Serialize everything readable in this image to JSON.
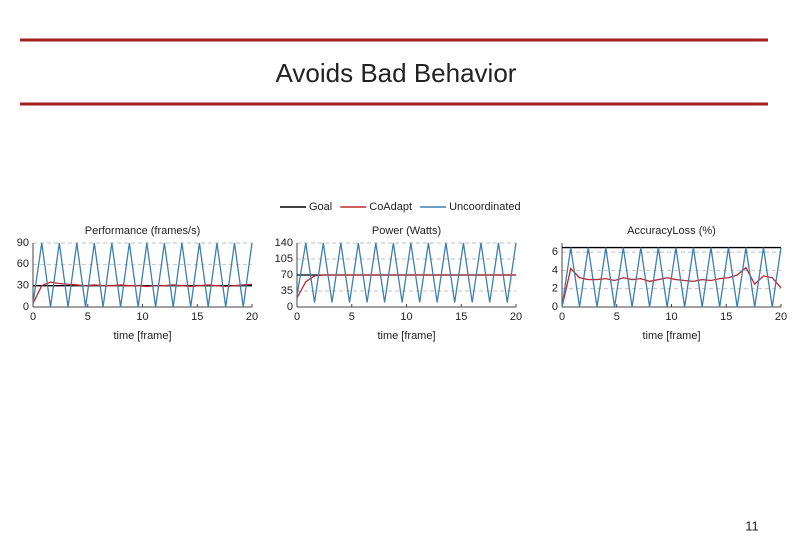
{
  "slide": {
    "title": "Avoids Bad Behavior",
    "page_number": "11"
  },
  "chart_data": [
    {
      "type": "line",
      "title": "Performance (frames/s)",
      "x_label": "time [frame]",
      "x": [
        0,
        0.8,
        1.6,
        2.4,
        3.2,
        4,
        4.8,
        5.6,
        6.4,
        7.2,
        8,
        8.8,
        9.6,
        10.4,
        11.2,
        12,
        12.8,
        13.6,
        14.4,
        15.2,
        16,
        16.8,
        17.6,
        18.4,
        19.2,
        20
      ],
      "xlim": [
        0,
        20
      ],
      "xticks": [
        0,
        5,
        10,
        15,
        20
      ],
      "ylim": [
        0,
        90
      ],
      "yticks": [
        0,
        30,
        60,
        90
      ],
      "grid": true,
      "series": [
        {
          "name": "Goal",
          "color": "#000000",
          "values": [
            30,
            30,
            30,
            30,
            30,
            30,
            30,
            30,
            30,
            30,
            30,
            30,
            30,
            30,
            30,
            30,
            30,
            30,
            30,
            30,
            30,
            30,
            30,
            30,
            30,
            30
          ]
        },
        {
          "name": "CoAdapt",
          "color": "#c0282d",
          "values": [
            5,
            30,
            35,
            33,
            32,
            31,
            30,
            31,
            30,
            30,
            31,
            30,
            30,
            29,
            30,
            30,
            31,
            30,
            29,
            30,
            31,
            30,
            29,
            30,
            31,
            32
          ]
        },
        {
          "name": "Uncoordinated",
          "color": "#3d7fb3",
          "values": [
            5,
            90,
            0,
            90,
            0,
            90,
            0,
            90,
            0,
            90,
            0,
            90,
            0,
            90,
            0,
            90,
            0,
            90,
            0,
            90,
            0,
            90,
            0,
            90,
            0,
            90
          ]
        }
      ]
    },
    {
      "type": "line",
      "title": "Power (Watts)",
      "x_label": "time [frame]",
      "x": [
        0,
        0.8,
        1.6,
        2.4,
        3.2,
        4,
        4.8,
        5.6,
        6.4,
        7.2,
        8,
        8.8,
        9.6,
        10.4,
        11.2,
        12,
        12.8,
        13.6,
        14.4,
        15.2,
        16,
        16.8,
        17.6,
        18.4,
        19.2,
        20
      ],
      "xlim": [
        0,
        20
      ],
      "xticks": [
        0,
        5,
        10,
        15,
        20
      ],
      "ylim": [
        0,
        140
      ],
      "yticks": [
        0,
        35,
        70,
        105,
        140
      ],
      "grid": true,
      "series": [
        {
          "color": "#000000",
          "values": [
            70,
            70,
            70,
            70,
            70,
            70,
            70,
            70,
            70,
            70,
            70,
            70,
            70,
            70,
            70,
            70,
            70,
            70,
            70,
            70,
            70,
            70,
            70,
            70,
            70,
            70
          ]
        },
        {
          "color": "#c0282d",
          "values": [
            20,
            55,
            68,
            70,
            70,
            70,
            70,
            70,
            70,
            70,
            70,
            70,
            70,
            70,
            70,
            70,
            70,
            70,
            70,
            70,
            70,
            70,
            70,
            70,
            70,
            70
          ]
        },
        {
          "color": "#3d7fb3",
          "values": [
            25,
            140,
            10,
            140,
            10,
            140,
            10,
            140,
            10,
            140,
            10,
            140,
            10,
            140,
            10,
            140,
            10,
            140,
            10,
            140,
            10,
            140,
            10,
            140,
            10,
            140
          ]
        }
      ]
    },
    {
      "type": "line",
      "title": "AccuracyLoss (%)",
      "x_label": "time [frame]",
      "x": [
        0,
        0.8,
        1.6,
        2.4,
        3.2,
        4,
        4.8,
        5.6,
        6.4,
        7.2,
        8,
        8.8,
        9.6,
        10.4,
        11.2,
        12,
        12.8,
        13.6,
        14.4,
        15.2,
        16,
        16.8,
        17.6,
        18.4,
        19.2,
        20
      ],
      "xlim": [
        0,
        20
      ],
      "xticks": [
        0,
        5,
        10,
        15,
        20
      ],
      "ylim": [
        0,
        7
      ],
      "yticks": [
        0,
        2,
        4,
        6
      ],
      "grid": true,
      "series": [
        {
          "color": "#000000",
          "values": [
            6.5,
            6.5,
            6.5,
            6.5,
            6.5,
            6.5,
            6.5,
            6.5,
            6.5,
            6.5,
            6.5,
            6.5,
            6.5,
            6.5,
            6.5,
            6.5,
            6.5,
            6.5,
            6.5,
            6.5,
            6.5,
            6.5,
            6.5,
            6.5,
            6.5,
            6.5
          ]
        },
        {
          "color": "#c0282d",
          "values": [
            0,
            4.2,
            3.2,
            3,
            3,
            3.1,
            2.9,
            3.2,
            3,
            3.1,
            2.8,
            3,
            3.2,
            3,
            2.9,
            2.8,
            3,
            2.9,
            3.1,
            3.2,
            3.5,
            4.3,
            2.5,
            3.4,
            3.2,
            2.1
          ]
        },
        {
          "color": "#3d7fb3",
          "values": [
            0,
            6.5,
            0,
            6.5,
            0,
            6.5,
            0,
            6.5,
            0,
            6.5,
            0,
            6.5,
            0,
            6.5,
            0,
            6.5,
            0,
            6.5,
            0,
            6.5,
            0,
            6.5,
            0,
            6.5,
            0,
            6.5
          ]
        }
      ]
    }
  ]
}
